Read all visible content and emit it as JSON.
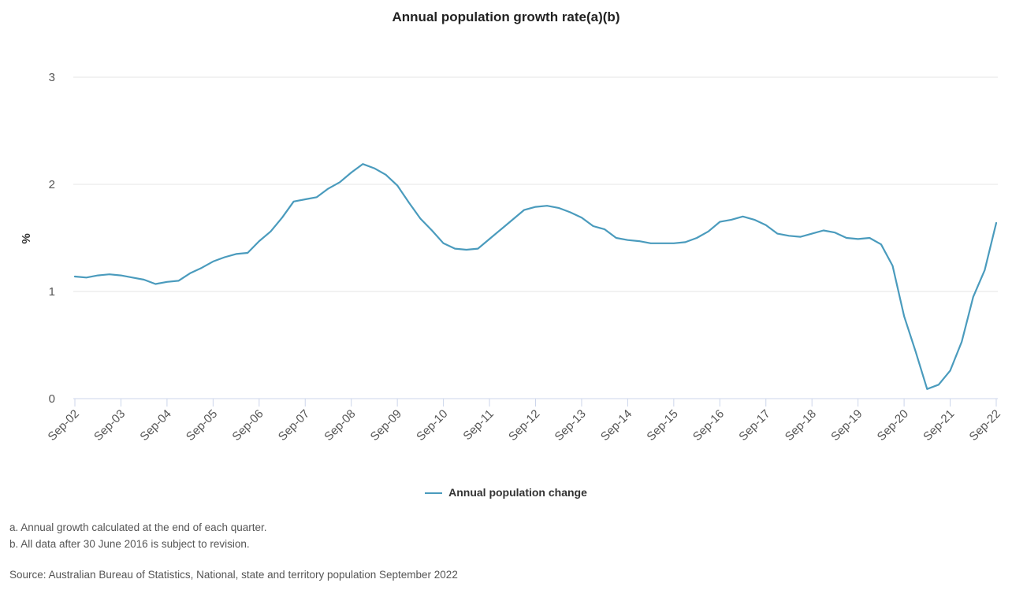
{
  "chart_data": {
    "type": "line",
    "title": "Annual population growth rate(a)(b)",
    "ylabel": "%",
    "xlabel": "",
    "ylim": [
      0,
      3
    ],
    "yticks": [
      0,
      1,
      2,
      3
    ],
    "grid": true,
    "legend_position": "bottom",
    "x_tick_labels": [
      "Sep-02",
      "Sep-03",
      "Sep-04",
      "Sep-05",
      "Sep-06",
      "Sep-07",
      "Sep-08",
      "Sep-09",
      "Sep-10",
      "Sep-11",
      "Sep-12",
      "Sep-13",
      "Sep-14",
      "Sep-15",
      "Sep-16",
      "Sep-17",
      "Sep-18",
      "Sep-19",
      "Sep-20",
      "Sep-21",
      "Sep-22"
    ],
    "x": [
      "Sep-02",
      "Dec-02",
      "Mar-03",
      "Jun-03",
      "Sep-03",
      "Dec-03",
      "Mar-04",
      "Jun-04",
      "Sep-04",
      "Dec-04",
      "Mar-05",
      "Jun-05",
      "Sep-05",
      "Dec-05",
      "Mar-06",
      "Jun-06",
      "Sep-06",
      "Dec-06",
      "Mar-07",
      "Jun-07",
      "Sep-07",
      "Dec-07",
      "Mar-08",
      "Jun-08",
      "Sep-08",
      "Dec-08",
      "Mar-09",
      "Jun-09",
      "Sep-09",
      "Dec-09",
      "Mar-10",
      "Jun-10",
      "Sep-10",
      "Dec-10",
      "Mar-11",
      "Jun-11",
      "Sep-11",
      "Dec-11",
      "Mar-12",
      "Jun-12",
      "Sep-12",
      "Dec-12",
      "Mar-13",
      "Jun-13",
      "Sep-13",
      "Dec-13",
      "Mar-14",
      "Jun-14",
      "Sep-14",
      "Dec-14",
      "Mar-15",
      "Jun-15",
      "Sep-15",
      "Dec-15",
      "Mar-16",
      "Jun-16",
      "Sep-16",
      "Dec-16",
      "Mar-17",
      "Jun-17",
      "Sep-17",
      "Dec-17",
      "Mar-18",
      "Jun-18",
      "Sep-18",
      "Dec-18",
      "Mar-19",
      "Jun-19",
      "Sep-19",
      "Dec-19",
      "Mar-20",
      "Jun-20",
      "Sep-20",
      "Dec-20",
      "Mar-21",
      "Jun-21",
      "Sep-21",
      "Dec-21",
      "Mar-22",
      "Jun-22",
      "Sep-22"
    ],
    "series": [
      {
        "name": "Annual population change",
        "color": "#4a9bbd",
        "values": [
          1.14,
          1.13,
          1.15,
          1.16,
          1.15,
          1.13,
          1.11,
          1.07,
          1.09,
          1.1,
          1.17,
          1.22,
          1.28,
          1.32,
          1.35,
          1.36,
          1.47,
          1.56,
          1.69,
          1.84,
          1.86,
          1.88,
          1.96,
          2.02,
          2.11,
          2.19,
          2.15,
          2.09,
          1.99,
          1.83,
          1.68,
          1.57,
          1.45,
          1.4,
          1.39,
          1.4,
          1.49,
          1.58,
          1.67,
          1.76,
          1.79,
          1.8,
          1.78,
          1.74,
          1.69,
          1.61,
          1.58,
          1.5,
          1.48,
          1.47,
          1.45,
          1.45,
          1.45,
          1.46,
          1.5,
          1.56,
          1.65,
          1.67,
          1.7,
          1.67,
          1.62,
          1.54,
          1.52,
          1.51,
          1.54,
          1.57,
          1.55,
          1.5,
          1.49,
          1.5,
          1.44,
          1.24,
          0.77,
          0.44,
          0.09,
          0.13,
          0.26,
          0.53,
          0.95,
          1.2,
          1.64
        ]
      }
    ]
  },
  "footnotes": {
    "a": "a. Annual growth calculated at the end of each quarter.",
    "b": "b. All data after 30 June 2016 is subject to revision.",
    "source": "Source: Australian Bureau of Statistics, National, state and territory population September 2022"
  }
}
